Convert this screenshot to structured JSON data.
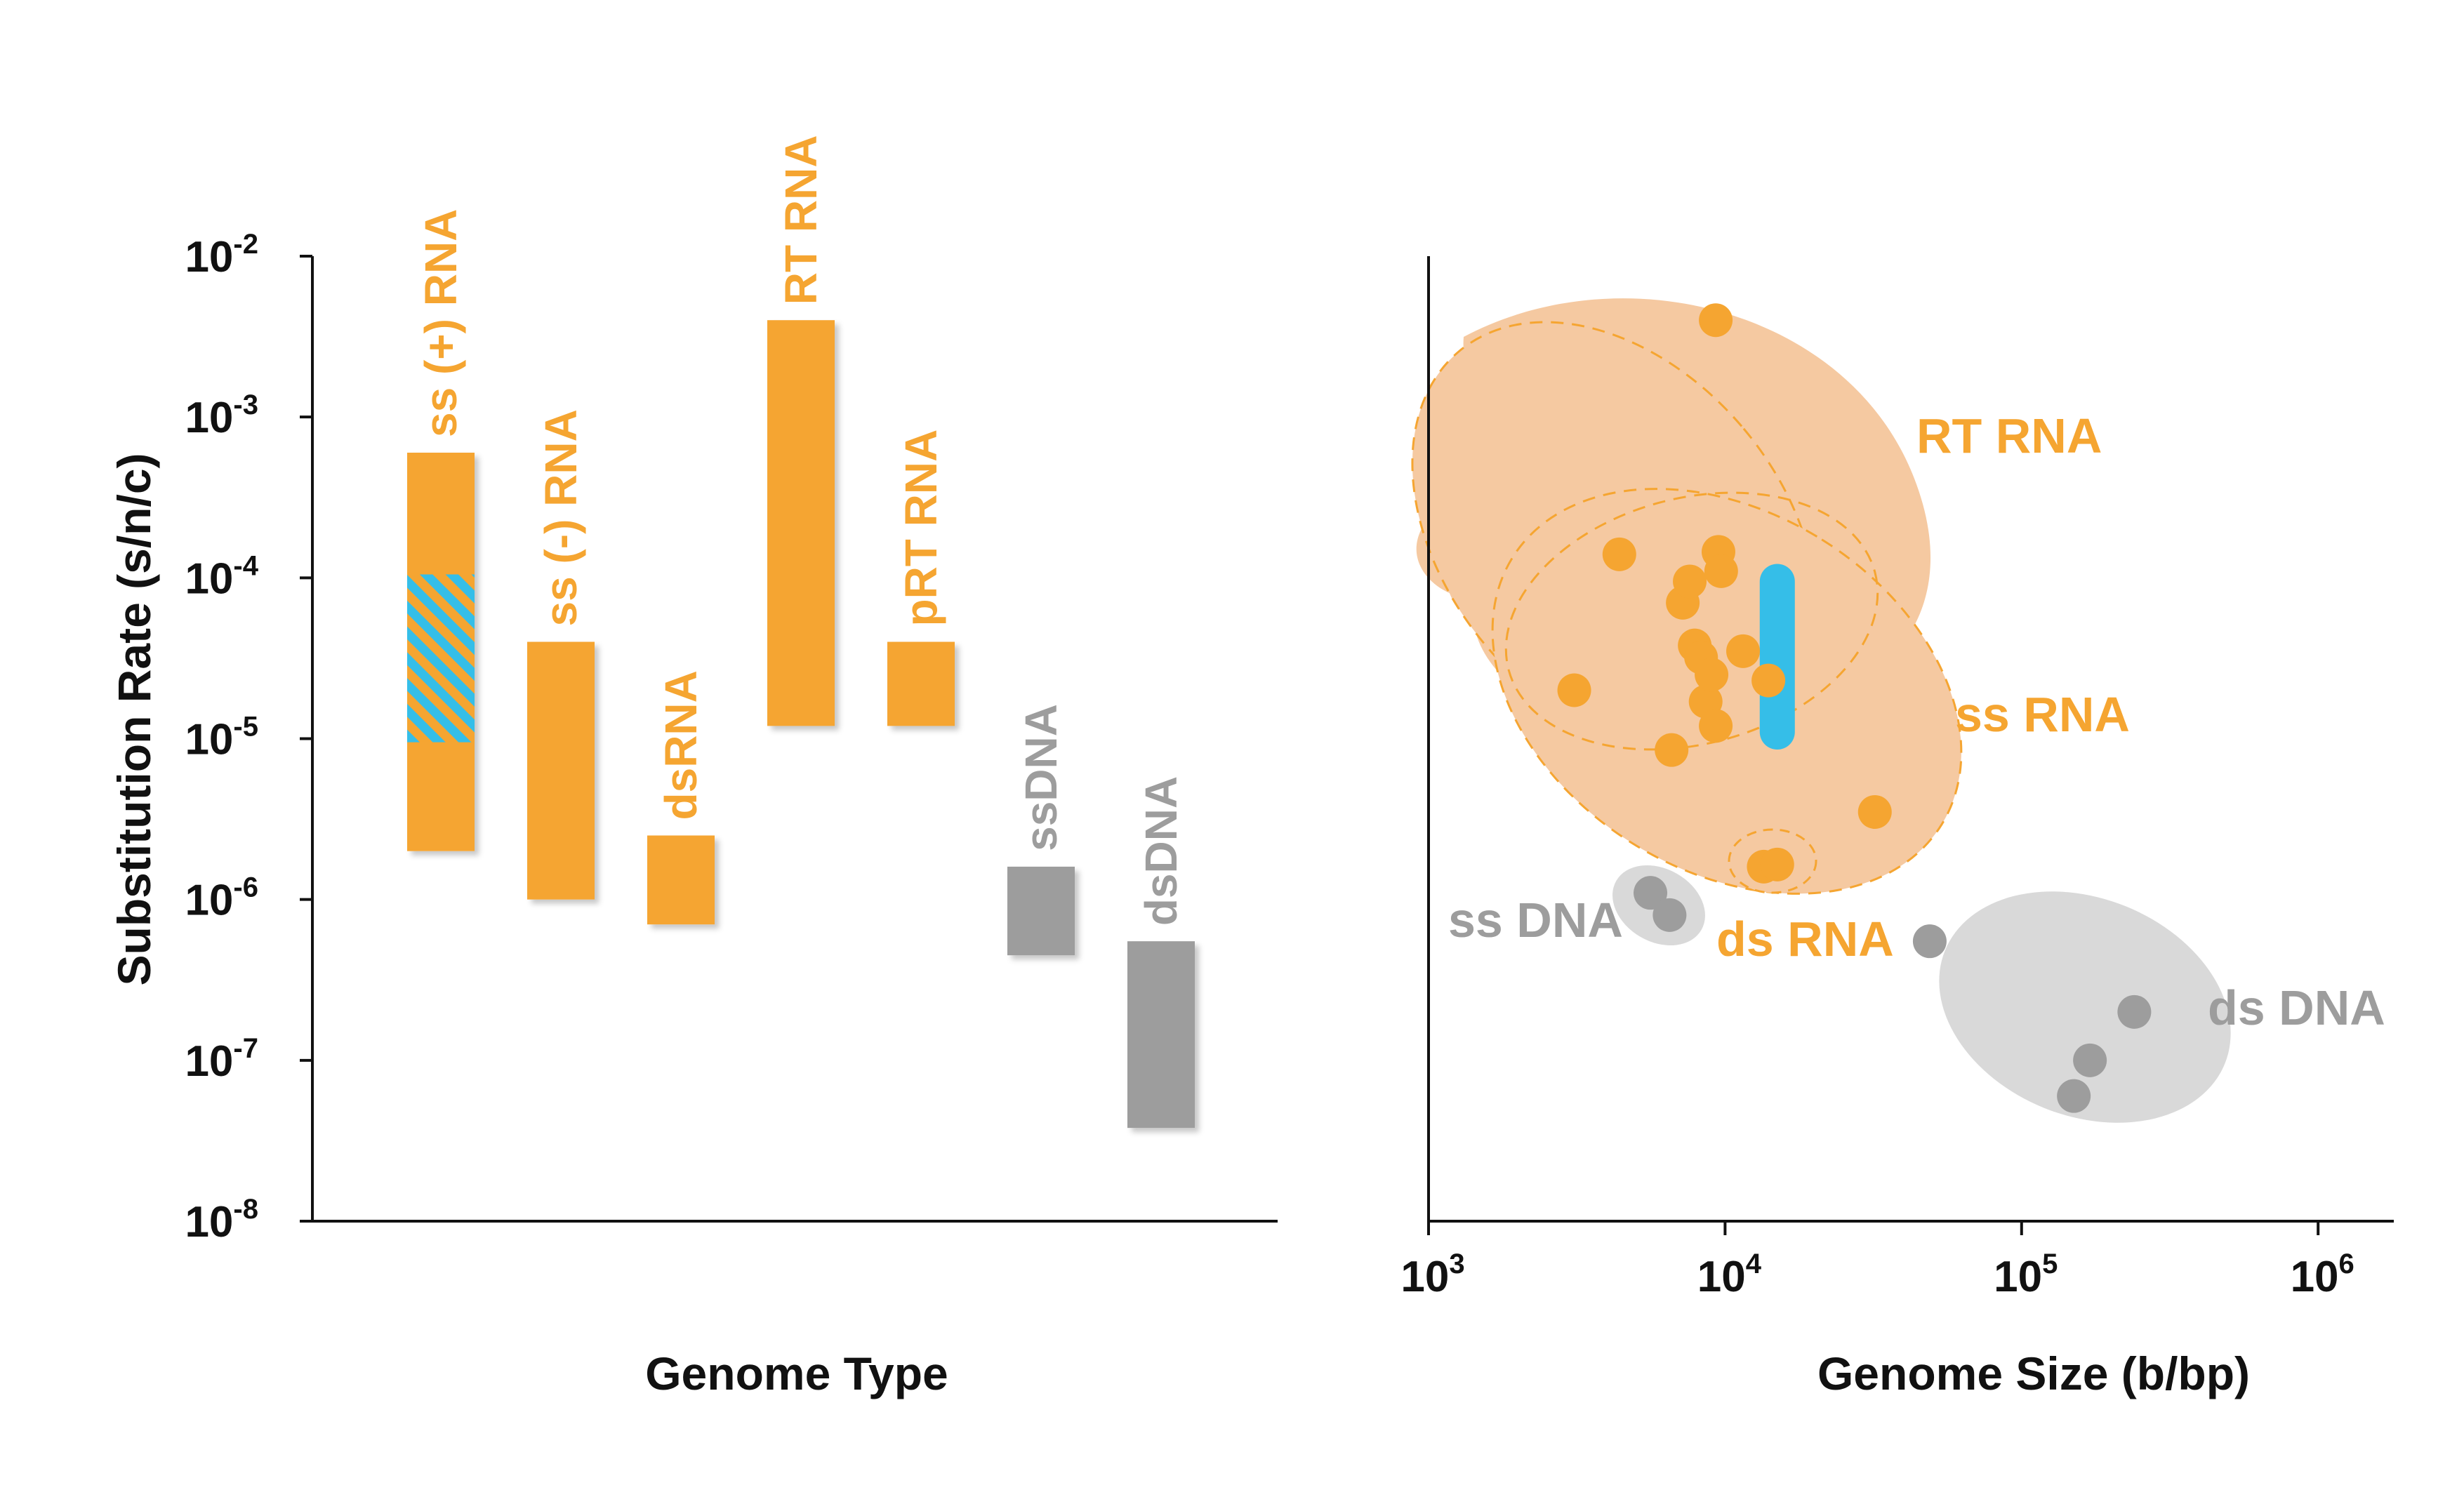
{
  "colors": {
    "rna": "#F5A531",
    "rna_fill": "#F5C9A1",
    "dna": "#9D9D9D",
    "dna_fill": "#D9D9D9",
    "highlight": "#35BEE8",
    "axis": "#111111"
  },
  "chart_data": [
    {
      "type": "bar",
      "title": "",
      "xlabel": "Genome Type",
      "ylabel": "Substitution Rate (s/n/c)",
      "yscale": "log",
      "ylim": [
        1e-08,
        0.01
      ],
      "yticks": [
        {
          "value": 0.01,
          "base": "10",
          "exp": "-2"
        },
        {
          "value": 0.001,
          "base": "10",
          "exp": "-3"
        },
        {
          "value": 0.0001,
          "base": "10",
          "exp": "-4"
        },
        {
          "value": 1e-05,
          "base": "10",
          "exp": "-5"
        },
        {
          "value": 1e-06,
          "base": "10",
          "exp": "-6"
        },
        {
          "value": 1e-07,
          "base": "10",
          "exp": "-7"
        },
        {
          "value": 1e-08,
          "base": "10",
          "exp": "-8"
        }
      ],
      "bars": [
        {
          "label": "ss (+) RNA",
          "group": "rna",
          "low": 2e-06,
          "high": 0.0006,
          "hatched_range": [
            9.5e-06,
            0.000105
          ]
        },
        {
          "label": "ss (-) RNA",
          "group": "rna",
          "low": 1e-06,
          "high": 4e-05
        },
        {
          "label": "dsRNA",
          "group": "rna",
          "low": 7e-07,
          "high": 2.5e-06
        },
        {
          "label": "RT RNA",
          "group": "rna",
          "low": 1.2e-05,
          "high": 0.004
        },
        {
          "label": "pRT RNA",
          "group": "rna",
          "low": 1.2e-05,
          "high": 4e-05
        },
        {
          "label": "ssDNA",
          "group": "dna",
          "low": 4.5e-07,
          "high": 1.6e-06
        },
        {
          "label": "dsDNA",
          "group": "dna",
          "low": 3.8e-08,
          "high": 5.5e-07
        }
      ]
    },
    {
      "type": "scatter",
      "title": "",
      "xlabel": "Genome Size (b/bp)",
      "ylabel": "",
      "xscale": "log",
      "yscale": "log",
      "xlim": [
        1000.0,
        1800000.0
      ],
      "ylim": [
        1e-08,
        0.01
      ],
      "xticks": [
        {
          "value": 1000.0,
          "base": "10",
          "exp": "3"
        },
        {
          "value": 10000.0,
          "base": "10",
          "exp": "4"
        },
        {
          "value": 100000.0,
          "base": "10",
          "exp": "5"
        },
        {
          "value": 1000000.0,
          "base": "10",
          "exp": "6"
        }
      ],
      "regions": [
        {
          "label": "RT RNA",
          "group": "rna"
        },
        {
          "label": "ss RNA",
          "group": "rna"
        },
        {
          "label": "ds RNA",
          "group": "rna"
        },
        {
          "label": "ss DNA",
          "group": "dna"
        },
        {
          "label": "ds DNA",
          "group": "dna"
        }
      ],
      "highlight_range": {
        "x": 15000,
        "y_low": 1.1e-05,
        "y_high": 9.5e-05
      },
      "series": [
        {
          "group": "rna",
          "points": [
            {
              "x": 9300,
              "y": 0.004
            },
            {
              "x": 3100,
              "y": 2e-05
            },
            {
              "x": 4400,
              "y": 0.00014
            },
            {
              "x": 6600,
              "y": 8.5e-06
            },
            {
              "x": 7200,
              "y": 7e-05
            },
            {
              "x": 7600,
              "y": 9.5e-05
            },
            {
              "x": 7900,
              "y": 3.8e-05
            },
            {
              "x": 8300,
              "y": 3.2e-05
            },
            {
              "x": 8600,
              "y": 1.7e-05
            },
            {
              "x": 9000,
              "y": 2.5e-05
            },
            {
              "x": 9300,
              "y": 1.2e-05
            },
            {
              "x": 9500,
              "y": 0.000145
            },
            {
              "x": 9700,
              "y": 0.00011
            },
            {
              "x": 11500,
              "y": 3.5e-05
            },
            {
              "x": 14000,
              "y": 2.3e-05
            },
            {
              "x": 32000,
              "y": 3.5e-06
            },
            {
              "x": 13500,
              "y": 1.6e-06
            },
            {
              "x": 15000,
              "y": 1.65e-06
            }
          ]
        },
        {
          "group": "dna",
          "points": [
            {
              "x": 5600,
              "y": 1.1e-06
            },
            {
              "x": 6500,
              "y": 8e-07
            },
            {
              "x": 49000,
              "y": 5.5e-07
            },
            {
              "x": 240000,
              "y": 2e-07
            },
            {
              "x": 170000,
              "y": 1e-07
            },
            {
              "x": 150000,
              "y": 6e-08
            }
          ]
        }
      ]
    }
  ]
}
